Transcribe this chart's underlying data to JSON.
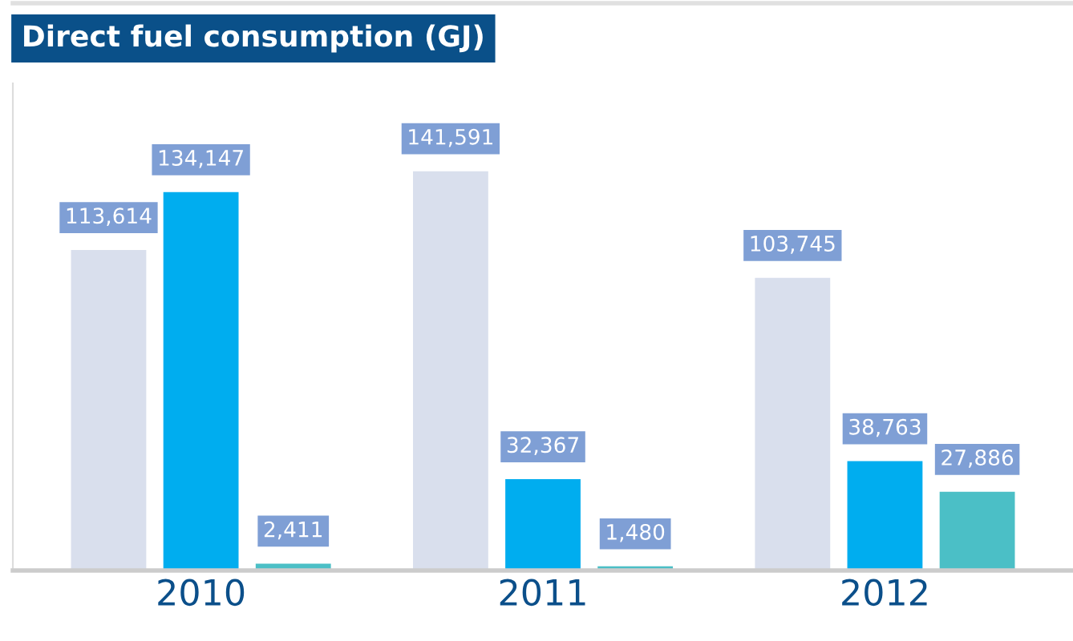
{
  "chart_data": {
    "type": "bar",
    "title": "Direct fuel consumption (GJ)",
    "categories": [
      "2010",
      "2011",
      "2012"
    ],
    "series": [
      {
        "color": "#d9dfed",
        "values": [
          113614,
          141591,
          103745
        ],
        "value_labels": [
          "113,614",
          "141,591",
          "103,745"
        ]
      },
      {
        "color": "#00adef",
        "values": [
          134147,
          32367,
          38763
        ],
        "value_labels": [
          "134,147",
          "32,367",
          "38,763"
        ]
      },
      {
        "color": "#4bbfc6",
        "values": [
          2411,
          1480,
          27886
        ],
        "value_labels": [
          "2,411",
          "1,480",
          "27,886"
        ]
      }
    ],
    "tick_labels": "x",
    "grid": false
  }
}
